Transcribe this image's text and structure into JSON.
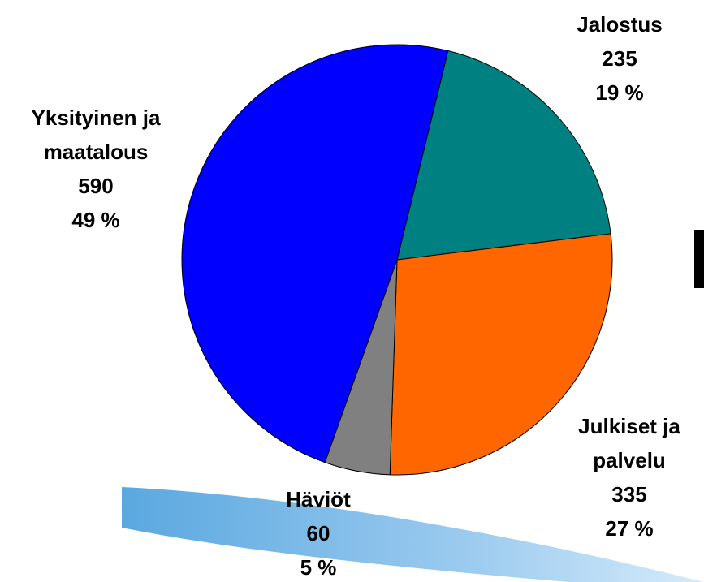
{
  "chart_data": {
    "type": "pie",
    "categories": [
      "Jalostus",
      "Julkiset ja\npalvelu",
      "Häviöt",
      "Yksityinen ja\nmaatalous"
    ],
    "values": [
      235,
      335,
      60,
      590
    ],
    "percent_labels": [
      "19 %",
      "27 %",
      "5 %",
      "49 %"
    ],
    "colors": [
      "#008080",
      "#ff6600",
      "#808080",
      "#0000ff"
    ]
  }
}
